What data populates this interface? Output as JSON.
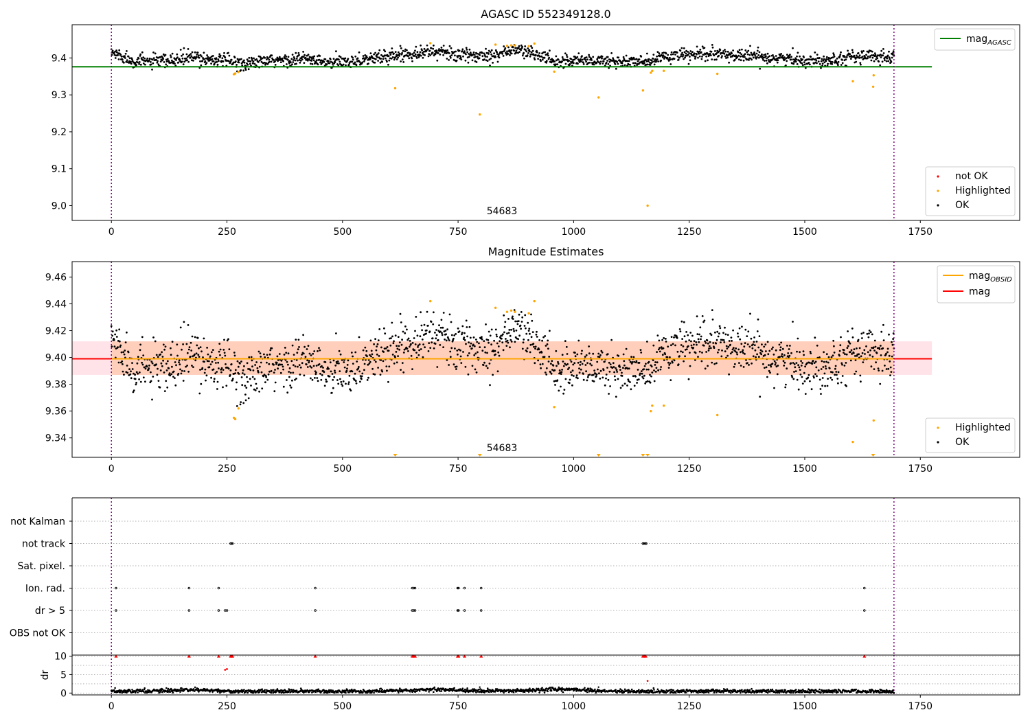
{
  "chart_data": [
    {
      "type": "scatter",
      "title": "AGASC ID 552349128.0",
      "xlabel": "",
      "ylabel": "",
      "xlim": [
        -85,
        1965
      ],
      "ylim": [
        8.96,
        9.49
      ],
      "x_ticks": [
        0,
        250,
        500,
        750,
        1000,
        1250,
        1500,
        1750
      ],
      "y_ticks": [
        9.0,
        9.1,
        9.2,
        9.3,
        9.4
      ],
      "y_tick_labels": [
        "9.0",
        "9.1",
        "9.2",
        "9.3",
        "9.4"
      ],
      "grid": false,
      "vlines": [
        0,
        1693
      ],
      "annotation": "54683",
      "hlines": [
        {
          "name": "mag_AGASC",
          "y": 9.376,
          "x_range": [
            -85,
            1775
          ],
          "color": "#008000"
        }
      ],
      "legend_lines": [
        {
          "name": "mag",
          "subscript": "AGASC",
          "color": "#008000"
        }
      ],
      "legend_lines_placement": "top-right",
      "legend_points": [
        {
          "name": "not OK",
          "color": "#ff0000"
        },
        {
          "name": "Highlighted",
          "color": "#ffa500"
        },
        {
          "name": "OK",
          "color": "#000000"
        }
      ],
      "legend_points_placement": "bottom-right",
      "series": [
        {
          "name": "OK",
          "color": "#000000",
          "generated": {
            "x_range": [
              0,
              1693
            ],
            "step": 1,
            "segments": [
              [
                0,
                9.415
              ],
              [
                50,
                9.392
              ],
              [
                120,
                9.39
              ],
              [
                170,
                9.402
              ],
              [
                230,
                9.395
              ],
              [
                290,
                9.385
              ],
              [
                350,
                9.392
              ],
              [
                420,
                9.398
              ],
              [
                470,
                9.386
              ],
              [
                560,
                9.398
              ],
              [
                640,
                9.412
              ],
              [
                700,
                9.418
              ],
              [
                770,
                9.405
              ],
              [
                830,
                9.41
              ],
              [
                880,
                9.423
              ],
              [
                930,
                9.405
              ],
              [
                960,
                9.39
              ],
              [
                1010,
                9.395
              ],
              [
                1060,
                9.392
              ],
              [
                1120,
                9.39
              ],
              [
                1160,
                9.388
              ],
              [
                1200,
                9.405
              ],
              [
                1300,
                9.41
              ],
              [
                1380,
                9.406
              ],
              [
                1460,
                9.398
              ],
              [
                1520,
                9.392
              ],
              [
                1600,
                9.403
              ],
              [
                1693,
                9.405
              ]
            ],
            "noise": 0.009
          }
        },
        {
          "name": "Highlighted",
          "color": "#ffa500",
          "x": [
            265,
            268,
            275,
            614,
            690,
            797,
            831,
            856,
            865,
            873,
            903,
            915,
            958,
            1054,
            1150,
            1160,
            1167,
            1170,
            1195,
            1311,
            1604,
            1648,
            1649
          ],
          "y": [
            9.356,
            9.358,
            9.362,
            9.318,
            9.44,
            9.247,
            9.436,
            9.433,
            9.434,
            9.434,
            9.432,
            9.439,
            9.363,
            9.293,
            9.312,
            9.0,
            9.36,
            9.365,
            9.365,
            9.357,
            9.337,
            9.322,
            9.353
          ]
        },
        {
          "name": "not OK",
          "color": "#ff0000",
          "x": [],
          "y": []
        }
      ]
    },
    {
      "type": "scatter",
      "title": "Magnitude Estimates",
      "xlabel": "",
      "ylabel": "",
      "xlim": [
        -85,
        1965
      ],
      "ylim": [
        9.3255,
        9.4715
      ],
      "x_ticks": [
        0,
        250,
        500,
        750,
        1000,
        1250,
        1500,
        1750
      ],
      "y_ticks": [
        9.34,
        9.36,
        9.38,
        9.4,
        9.42,
        9.44,
        9.46
      ],
      "y_tick_labels": [
        "9.34",
        "9.36",
        "9.38",
        "9.40",
        "9.42",
        "9.44",
        "9.46"
      ],
      "grid": false,
      "vlines": [
        0,
        1693
      ],
      "annotation": "54683",
      "bands": [
        {
          "x_range": [
            -85,
            1775
          ],
          "y_range": [
            9.387,
            9.412
          ],
          "color": "#ffc0cb",
          "opacity": 0.45
        },
        {
          "x_range": [
            0,
            1693
          ],
          "y_range": [
            9.387,
            9.412
          ],
          "color": "#ffb27f",
          "opacity": 0.42
        }
      ],
      "hlines": [
        {
          "name": "mag",
          "y": 9.399,
          "x_range": [
            -85,
            1775
          ],
          "color": "#ff0000"
        },
        {
          "name": "mag_OBSID",
          "y": 9.399,
          "x_range": [
            0,
            1693
          ],
          "color": "#ffa500"
        }
      ],
      "legend_lines": [
        {
          "name": "mag",
          "subscript": "OBSID",
          "color": "#ffa500"
        },
        {
          "name": "mag",
          "subscript": "",
          "color": "#ff0000"
        }
      ],
      "legend_lines_placement": "top-right",
      "legend_points": [
        {
          "name": "Highlighted",
          "color": "#ffa500"
        },
        {
          "name": "OK",
          "color": "#000000"
        }
      ],
      "legend_points_placement": "bottom-right",
      "clipped_markers": [
        {
          "x": 614,
          "color": "#ffa500"
        },
        {
          "x": 797,
          "color": "#ffa500"
        },
        {
          "x": 1054,
          "color": "#ffa500"
        },
        {
          "x": 1150,
          "color": "#ffa500"
        },
        {
          "x": 1160,
          "color": "#ffa500"
        },
        {
          "x": 1648,
          "color": "#ffa500"
        }
      ],
      "series": [
        {
          "name": "OK",
          "color": "#000000",
          "generated": {
            "x_range": [
              0,
              1693
            ],
            "step": 1,
            "segments": [
              [
                0,
                9.415
              ],
              [
                50,
                9.392
              ],
              [
                120,
                9.39
              ],
              [
                170,
                9.402
              ],
              [
                230,
                9.395
              ],
              [
                290,
                9.385
              ],
              [
                350,
                9.392
              ],
              [
                420,
                9.398
              ],
              [
                470,
                9.386
              ],
              [
                560,
                9.398
              ],
              [
                640,
                9.412
              ],
              [
                700,
                9.418
              ],
              [
                770,
                9.405
              ],
              [
                830,
                9.41
              ],
              [
                880,
                9.423
              ],
              [
                930,
                9.405
              ],
              [
                960,
                9.39
              ],
              [
                1010,
                9.395
              ],
              [
                1060,
                9.392
              ],
              [
                1120,
                9.39
              ],
              [
                1160,
                9.388
              ],
              [
                1200,
                9.405
              ],
              [
                1300,
                9.41
              ],
              [
                1380,
                9.406
              ],
              [
                1460,
                9.398
              ],
              [
                1520,
                9.392
              ],
              [
                1600,
                9.403
              ],
              [
                1693,
                9.405
              ]
            ],
            "noise": 0.009
          }
        },
        {
          "name": "Highlighted",
          "color": "#ffa500",
          "x": [
            265,
            268,
            275,
            690,
            831,
            856,
            865,
            873,
            903,
            915,
            958,
            1167,
            1170,
            1195,
            1311,
            1604,
            1649
          ],
          "y": [
            9.355,
            9.354,
            9.362,
            9.442,
            9.437,
            9.434,
            9.435,
            9.434,
            9.433,
            9.442,
            9.363,
            9.36,
            9.364,
            9.364,
            9.357,
            9.337,
            9.353
          ]
        }
      ]
    },
    {
      "type": "scatter",
      "title": "",
      "xlabel": "",
      "ylabel": "",
      "xlim": [
        -85,
        1965
      ],
      "grid": true,
      "vlines": [
        0,
        1693
      ],
      "flag_rows": [
        {
          "label": "not Kalman",
          "x": []
        },
        {
          "label": "not track",
          "x": [
            258,
            260,
            262,
            1150,
            1152,
            1155,
            1157
          ]
        },
        {
          "label": "Sat. pixel.",
          "x": []
        },
        {
          "label": "Ion. rad.",
          "x": [
            10,
            168,
            232,
            441,
            651,
            654,
            657,
            749,
            751,
            764,
            800,
            1629
          ]
        },
        {
          "label": "dr > 5",
          "x": [
            10,
            168,
            232,
            246,
            250,
            441,
            651,
            654,
            657,
            749,
            751,
            764,
            800,
            1629
          ]
        },
        {
          "label": "OBS not OK",
          "x": []
        }
      ]
    },
    {
      "type": "scatter",
      "title": "",
      "xlabel": "",
      "ylabel": "dr",
      "xlim": [
        -85,
        1965
      ],
      "ylim": [
        -0.5,
        10.3
      ],
      "x_ticks": [
        0,
        250,
        500,
        750,
        1000,
        1250,
        1500,
        1750
      ],
      "y_ticks": [
        0,
        5,
        10
      ],
      "y_tick_labels": [
        "0",
        "5",
        "10"
      ],
      "grid": true,
      "vlines": [
        0,
        1693
      ],
      "clipped_markers": [
        {
          "x": 10,
          "color": "#ff0000"
        },
        {
          "x": 168,
          "color": "#ff0000"
        },
        {
          "x": 232,
          "color": "#ff0000"
        },
        {
          "x": 258,
          "color": "#ff0000"
        },
        {
          "x": 260,
          "color": "#ff0000"
        },
        {
          "x": 262,
          "color": "#ff0000"
        },
        {
          "x": 441,
          "color": "#ff0000"
        },
        {
          "x": 651,
          "color": "#ff0000"
        },
        {
          "x": 654,
          "color": "#ff0000"
        },
        {
          "x": 657,
          "color": "#ff0000"
        },
        {
          "x": 749,
          "color": "#ff0000"
        },
        {
          "x": 751,
          "color": "#ff0000"
        },
        {
          "x": 764,
          "color": "#ff0000"
        },
        {
          "x": 800,
          "color": "#ff0000"
        },
        {
          "x": 1150,
          "color": "#ff0000"
        },
        {
          "x": 1153,
          "color": "#ff0000"
        },
        {
          "x": 1156,
          "color": "#ff0000"
        },
        {
          "x": 1629,
          "color": "#ff0000"
        }
      ],
      "series": [
        {
          "name": "OK",
          "color": "#000000",
          "generated": {
            "x_range": [
              0,
              1693
            ],
            "step": 1,
            "segments": [
              [
                0,
                0.5
              ],
              [
                100,
                0.55
              ],
              [
                200,
                0.9
              ],
              [
                260,
                0.45
              ],
              [
                400,
                0.5
              ],
              [
                550,
                0.45
              ],
              [
                650,
                0.8
              ],
              [
                700,
                1.0
              ],
              [
                800,
                0.6
              ],
              [
                900,
                0.7
              ],
              [
                1000,
                1.05
              ],
              [
                1050,
                0.5
              ],
              [
                1200,
                0.45
              ],
              [
                1350,
                0.55
              ],
              [
                1500,
                0.45
              ],
              [
                1600,
                0.55
              ],
              [
                1693,
                0.4
              ]
            ],
            "noise": 0.25
          },
          "extra_x": [
            797,
            1054
          ],
          "extra_y": [
            1.6,
            1.6
          ]
        },
        {
          "name": "not OK",
          "color": "#ff0000",
          "x": [
            246,
            250,
            1160
          ],
          "y": [
            6.3,
            6.5,
            3.3
          ]
        }
      ]
    }
  ]
}
